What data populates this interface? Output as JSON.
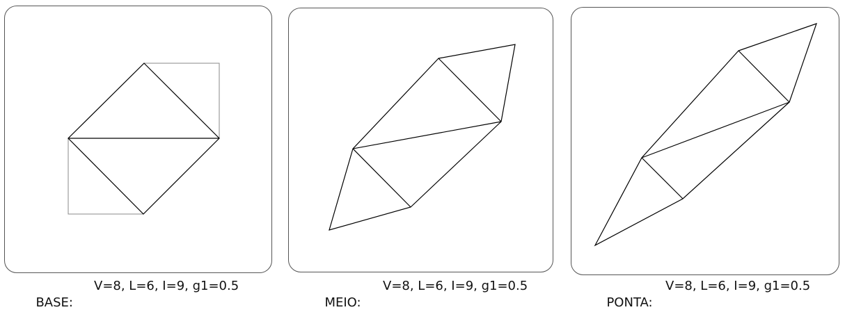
{
  "panels": [
    {
      "name": "BASE:",
      "params": "V=8, L=6, I=9, g1=0.5"
    },
    {
      "name": "MEIO:",
      "params": "V=8, L=6, I=9, g1=0.5"
    },
    {
      "name": "PONTA:",
      "params": "V=8, L=6, I=9, g1=0.5"
    }
  ],
  "colors": {
    "frame": "#555555",
    "shape_stroke": "#000000",
    "guide_stroke": "#888888"
  }
}
